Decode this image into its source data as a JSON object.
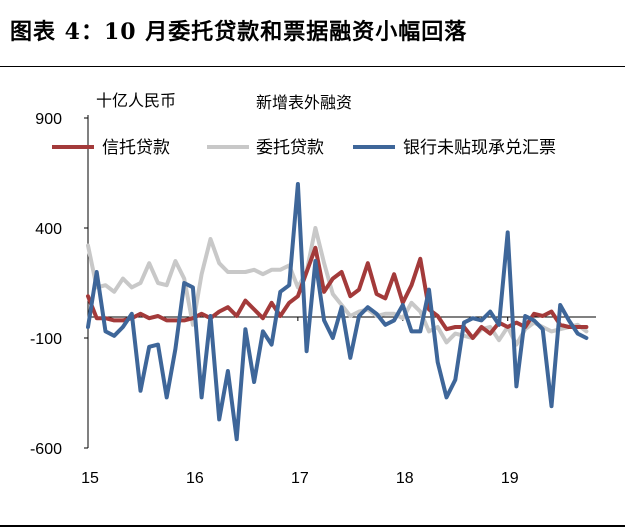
{
  "header": {
    "title": "图表 4：10 月委托贷款和票据融资小幅回落"
  },
  "chart_data": {
    "type": "line",
    "title": "新增表外融资",
    "ylabel": "十亿人民币",
    "xlabel": "",
    "ylim": [
      -600,
      900
    ],
    "yticks": [
      "900",
      "400",
      "-100",
      "-600"
    ],
    "xticks": [
      "15",
      "16",
      "17",
      "18",
      "19"
    ],
    "legend_position": "top",
    "series": [
      {
        "name": "信托贷款",
        "color": "#A33A3A",
        "x": [
          2015.0,
          2015.083,
          2015.167,
          2015.25,
          2015.333,
          2015.417,
          2015.5,
          2015.583,
          2015.667,
          2015.75,
          2015.833,
          2015.917,
          2016.0,
          2016.083,
          2016.167,
          2016.25,
          2016.333,
          2016.417,
          2016.5,
          2016.583,
          2016.667,
          2016.75,
          2016.833,
          2016.917,
          2017.0,
          2017.083,
          2017.167,
          2017.25,
          2017.333,
          2017.417,
          2017.5,
          2017.583,
          2017.667,
          2017.75,
          2017.833,
          2017.917,
          2018.0,
          2018.083,
          2018.167,
          2018.25,
          2018.333,
          2018.417,
          2018.5,
          2018.583,
          2018.667,
          2018.75,
          2018.833,
          2018.917,
          2019.0,
          2019.083,
          2019.167,
          2019.25,
          2019.333,
          2019.417,
          2019.5,
          2019.583,
          2019.667,
          2019.75
        ],
        "values": [
          90,
          -10,
          -10,
          -20,
          -20,
          -10,
          10,
          -10,
          0,
          -20,
          -20,
          -20,
          -10,
          10,
          -10,
          20,
          40,
          0,
          70,
          30,
          -10,
          60,
          0,
          60,
          90,
          200,
          310,
          110,
          170,
          200,
          90,
          120,
          240,
          100,
          80,
          190,
          60,
          140,
          260,
          30,
          0,
          -60,
          -50,
          -50,
          -100,
          -50,
          -80,
          -30,
          -50,
          -30,
          -50,
          10,
          0,
          20,
          -40,
          -50,
          -50,
          -50
        ]
      },
      {
        "name": "委托贷款",
        "color": "#C8C8C8",
        "x": [
          2015.0,
          2015.083,
          2015.167,
          2015.25,
          2015.333,
          2015.417,
          2015.5,
          2015.583,
          2015.667,
          2015.75,
          2015.833,
          2015.917,
          2016.0,
          2016.083,
          2016.167,
          2016.25,
          2016.333,
          2016.417,
          2016.5,
          2016.583,
          2016.667,
          2016.75,
          2016.833,
          2016.917,
          2017.0,
          2017.083,
          2017.167,
          2017.25,
          2017.333,
          2017.417,
          2017.5,
          2017.583,
          2017.667,
          2017.75,
          2017.833,
          2017.917,
          2018.0,
          2018.083,
          2018.167,
          2018.25,
          2018.333,
          2018.417,
          2018.5,
          2018.583,
          2018.667,
          2018.75,
          2018.833,
          2018.917,
          2019.0,
          2019.083,
          2019.167,
          2019.25,
          2019.333,
          2019.417,
          2019.5,
          2019.583,
          2019.667,
          2019.75
        ],
        "values": [
          320,
          130,
          140,
          110,
          170,
          130,
          150,
          240,
          150,
          140,
          250,
          170,
          -40,
          190,
          350,
          240,
          200,
          200,
          200,
          210,
          190,
          210,
          210,
          230,
          130,
          200,
          400,
          240,
          100,
          50,
          0,
          20,
          30,
          0,
          10,
          10,
          -10,
          60,
          20,
          -70,
          -50,
          -120,
          -80,
          -90,
          -100,
          -60,
          -50,
          -110,
          -50,
          -130,
          -60,
          -30,
          -50,
          -70,
          -60,
          -50,
          -40,
          -70
        ]
      },
      {
        "name": "银行未贴现承兑汇票",
        "color": "#3E6699",
        "x": [
          2015.0,
          2015.083,
          2015.167,
          2015.25,
          2015.333,
          2015.417,
          2015.5,
          2015.583,
          2015.667,
          2015.75,
          2015.833,
          2015.917,
          2016.0,
          2016.083,
          2016.167,
          2016.25,
          2016.333,
          2016.417,
          2016.5,
          2016.583,
          2016.667,
          2016.75,
          2016.833,
          2016.917,
          2017.0,
          2017.083,
          2017.167,
          2017.25,
          2017.333,
          2017.417,
          2017.5,
          2017.583,
          2017.667,
          2017.75,
          2017.833,
          2017.917,
          2018.0,
          2018.083,
          2018.167,
          2018.25,
          2018.333,
          2018.417,
          2018.5,
          2018.583,
          2018.667,
          2018.75,
          2018.833,
          2018.917,
          2019.0,
          2019.083,
          2019.167,
          2019.25,
          2019.333,
          2019.417,
          2019.5,
          2019.583,
          2019.667,
          2019.75
        ],
        "values": [
          -50,
          200,
          -70,
          -90,
          -50,
          10,
          -340,
          -140,
          -130,
          -370,
          -150,
          150,
          130,
          -370,
          0,
          -470,
          -250,
          -560,
          -60,
          -300,
          -70,
          -130,
          110,
          140,
          600,
          -160,
          250,
          -20,
          -100,
          40,
          -190,
          0,
          40,
          10,
          -40,
          -20,
          50,
          -70,
          -70,
          120,
          -210,
          -370,
          -290,
          -30,
          -10,
          -20,
          20,
          -40,
          380,
          -320,
          0,
          -20,
          -60,
          -410,
          50,
          -20,
          -80,
          -100
        ]
      }
    ]
  }
}
